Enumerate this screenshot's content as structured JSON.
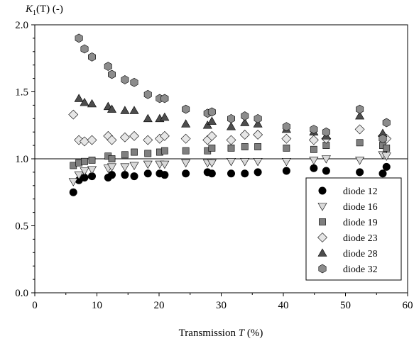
{
  "chart_data": {
    "type": "scatter",
    "ylabel_main": "K",
    "ylabel_sub": "1",
    "ylabel_rest": "(T) (-)",
    "xlabel_main": "Transmission ",
    "xlabel_var": "T",
    "xlabel_unit": " (%)",
    "xlim": [
      0,
      60
    ],
    "ylim": [
      0.0,
      2.0
    ],
    "xticks": [
      "0",
      "10",
      "20",
      "30",
      "40",
      "50",
      "60"
    ],
    "yticks": [
      "0.0",
      "0.5",
      "1.0",
      "1.5",
      "2.0"
    ],
    "reference_line_y": 1.0,
    "grid": false,
    "legend_position": "bottom-right",
    "x": [
      6.2,
      7.1,
      8.0,
      9.2,
      11.8,
      12.4,
      14.5,
      16.0,
      18.2,
      20.1,
      20.9,
      24.3,
      27.8,
      28.5,
      31.6,
      33.8,
      35.9,
      40.5,
      44.9,
      46.9,
      52.3,
      56.0,
      56.6
    ],
    "series": [
      {
        "name": "diode 12",
        "marker": "circle",
        "color": "#000000",
        "values": [
          0.75,
          0.84,
          0.86,
          0.87,
          0.86,
          0.88,
          0.88,
          0.87,
          0.89,
          0.89,
          0.88,
          0.89,
          0.9,
          0.89,
          0.89,
          0.89,
          0.9,
          0.91,
          0.93,
          0.91,
          0.9,
          0.89,
          0.94
        ]
      },
      {
        "name": "diode 16",
        "marker": "triangle-down",
        "color": "#d9d9d9",
        "values": [
          0.83,
          0.88,
          0.91,
          0.92,
          0.93,
          0.94,
          0.94,
          0.95,
          0.96,
          0.96,
          0.96,
          0.97,
          0.97,
          0.97,
          0.98,
          0.98,
          0.98,
          0.98,
          0.99,
          1.0,
          0.99,
          1.03,
          1.02
        ]
      },
      {
        "name": "diode 19",
        "marker": "square",
        "color": "#7f7f7f",
        "values": [
          0.95,
          0.97,
          0.98,
          0.99,
          1.02,
          1.0,
          1.03,
          1.05,
          1.04,
          1.05,
          1.06,
          1.06,
          1.06,
          1.08,
          1.08,
          1.09,
          1.09,
          1.08,
          1.07,
          1.1,
          1.12,
          1.1,
          1.08
        ]
      },
      {
        "name": "diode 23",
        "marker": "diamond",
        "color": "#e6e6e6",
        "values": [
          1.33,
          1.14,
          1.13,
          1.14,
          1.17,
          1.14,
          1.16,
          1.17,
          1.14,
          1.15,
          1.17,
          1.15,
          1.14,
          1.17,
          1.14,
          1.18,
          1.18,
          1.15,
          1.14,
          1.15,
          1.22,
          1.17,
          1.15
        ]
      },
      {
        "name": "diode 28",
        "marker": "triangle-up",
        "color": "#4d4d4d",
        "values": [
          null,
          1.45,
          1.42,
          1.41,
          1.39,
          1.37,
          1.36,
          1.36,
          1.3,
          1.3,
          1.31,
          1.26,
          1.25,
          1.28,
          1.24,
          1.27,
          1.26,
          1.22,
          1.2,
          1.17,
          1.32,
          1.19,
          null
        ]
      },
      {
        "name": "diode 32",
        "marker": "hexagon",
        "color": "#8c8c8c",
        "values": [
          null,
          1.9,
          1.82,
          1.76,
          1.69,
          1.63,
          1.59,
          1.57,
          1.48,
          1.45,
          1.45,
          1.37,
          1.34,
          1.35,
          1.3,
          1.32,
          1.3,
          1.24,
          1.22,
          1.2,
          1.37,
          1.15,
          1.27
        ]
      }
    ]
  }
}
